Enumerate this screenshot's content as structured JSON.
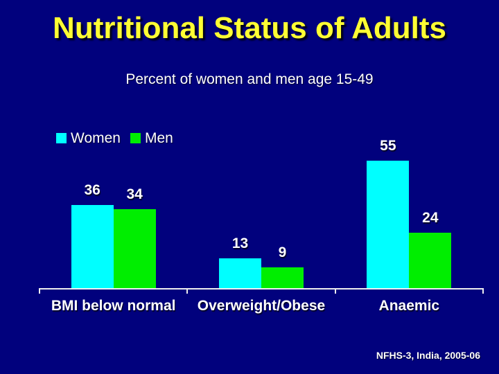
{
  "slide": {
    "title": "Nutritional Status of Adults",
    "subtitle": "Percent of women and men age 15-49",
    "source": "NFHS-3, India, 2005-06"
  },
  "colors": {
    "background": "#01017d",
    "title_text": "#ffff33",
    "body_text": "#ffffff",
    "women_series": "#00ffff",
    "men_series": "#00ee00",
    "axis": "#efefef"
  },
  "chart_data": {
    "type": "bar",
    "title": "Nutritional Status of Adults",
    "subtitle": "Percent of women and men age 15-49",
    "categories": [
      "BMI below normal",
      "Overweight/Obese",
      "Anaemic"
    ],
    "series": [
      {
        "name": "Women",
        "color": "#00ffff",
        "values": [
          36,
          13,
          55
        ]
      },
      {
        "name": "Men",
        "color": "#00ee00",
        "values": [
          34,
          9,
          24
        ]
      }
    ],
    "xlabel": "",
    "ylabel": "",
    "ylim": [
      0,
      60
    ],
    "grid": false,
    "y_axis_shown": false,
    "data_labels": true,
    "legend_position": "top-left",
    "source": "NFHS-3, India, 2005-06"
  }
}
